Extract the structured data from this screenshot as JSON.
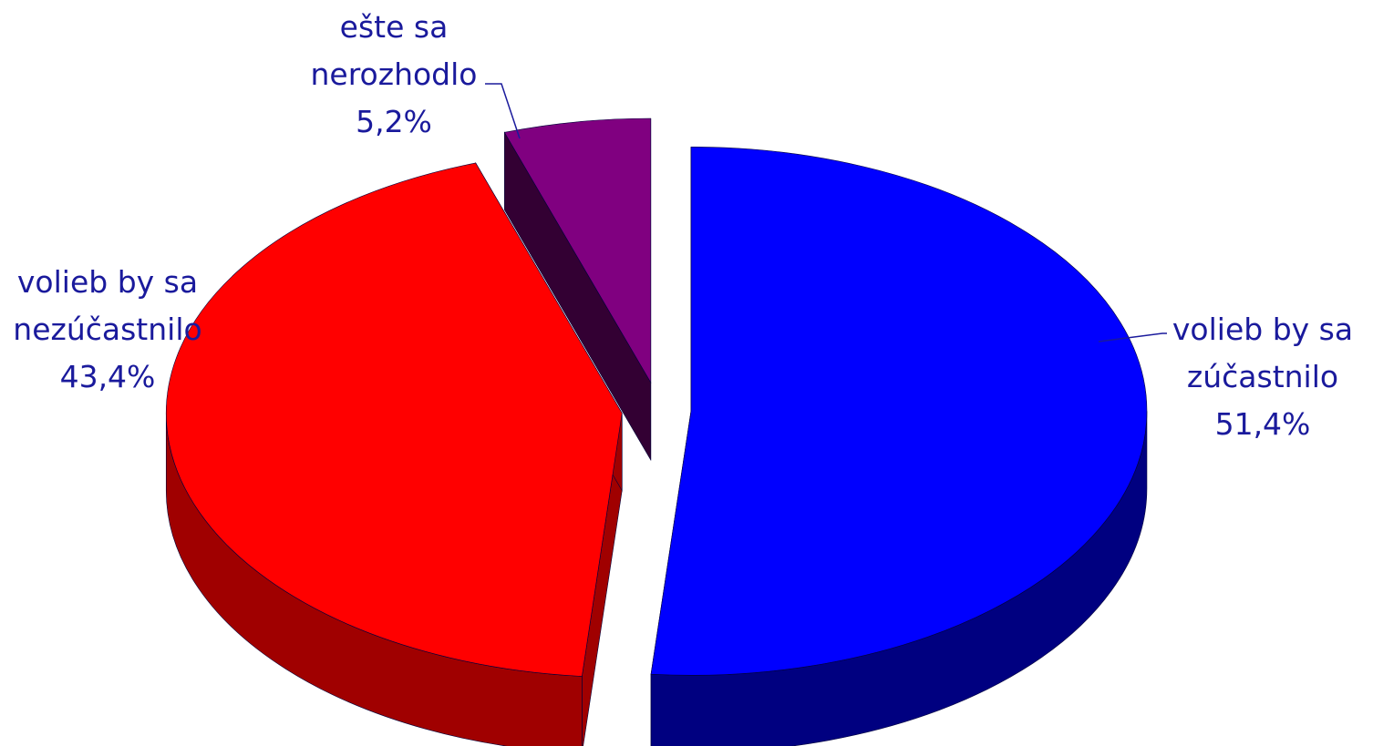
{
  "chart_data": {
    "type": "pie",
    "categories": [
      "volieb by sa zúčastnilo",
      "volieb by sa nezúčastnilo",
      "ešte sa nerozhodlo"
    ],
    "values": [
      51.4,
      43.4,
      5.2
    ],
    "value_labels": [
      "51,4%",
      "43,4%",
      "5,2%"
    ],
    "colors": [
      "#0000ff",
      "#ff0000",
      "#800080"
    ],
    "side_colors": [
      "#000080",
      "#a00000",
      "#330033"
    ]
  }
}
